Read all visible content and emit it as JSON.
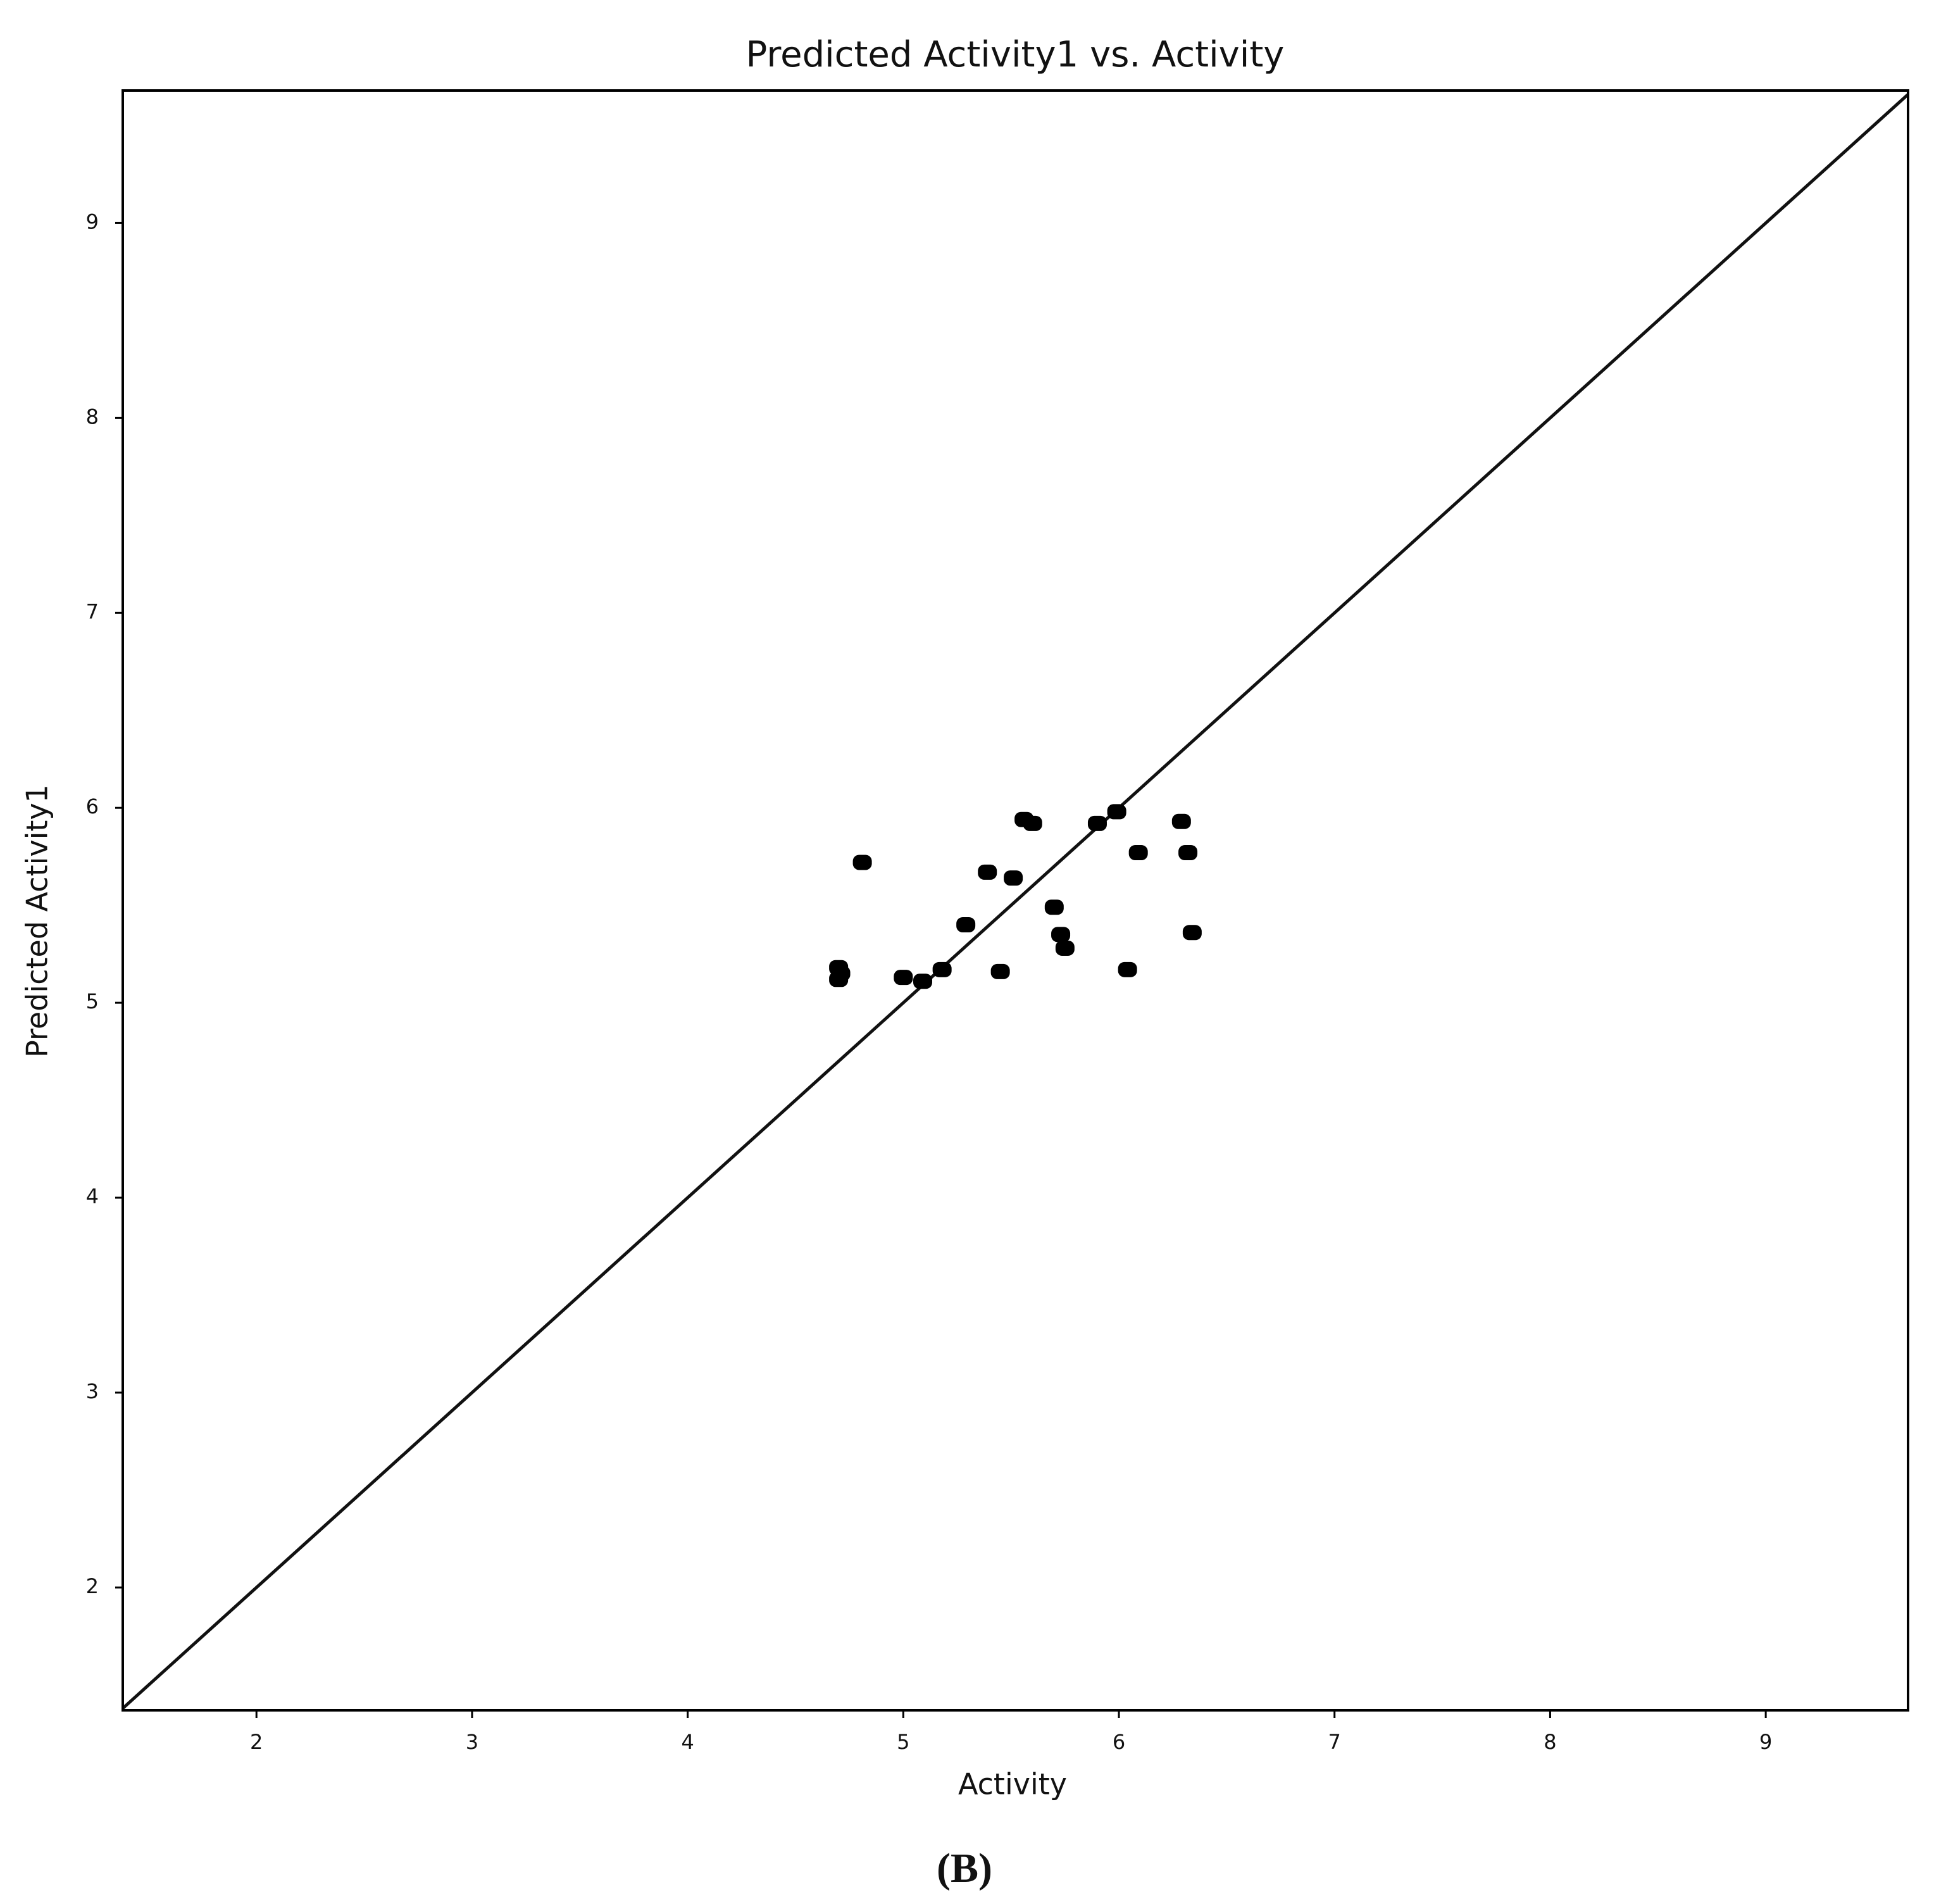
{
  "chart_data": {
    "type": "scatter",
    "title": "Predicted Activity1 vs. Activity",
    "x_label": "Activity",
    "y_label": "Predicted Activity1",
    "x": [
      4.7,
      4.7,
      4.71,
      4.81,
      5.0,
      5.09,
      5.18,
      5.29,
      5.39,
      5.45,
      5.51,
      5.56,
      5.6,
      5.7,
      5.73,
      5.75,
      5.9,
      5.99,
      6.04,
      6.09,
      6.29,
      6.32,
      6.34
    ],
    "values": [
      5.18,
      5.12,
      5.15,
      5.72,
      5.13,
      5.11,
      5.17,
      5.4,
      5.67,
      5.16,
      5.64,
      5.94,
      5.92,
      5.49,
      5.35,
      5.28,
      5.92,
      5.98,
      5.17,
      5.77,
      5.93,
      5.77,
      5.36
    ],
    "color": "#000000",
    "xlim": [
      1.38,
      9.66
    ],
    "ylim": [
      1.37,
      9.68
    ],
    "xticks": [
      2,
      3,
      4,
      5,
      6,
      7,
      8,
      9
    ],
    "yticks": [
      2,
      3,
      4,
      5,
      6,
      7,
      8,
      9
    ]
  },
  "caption": "(B)"
}
